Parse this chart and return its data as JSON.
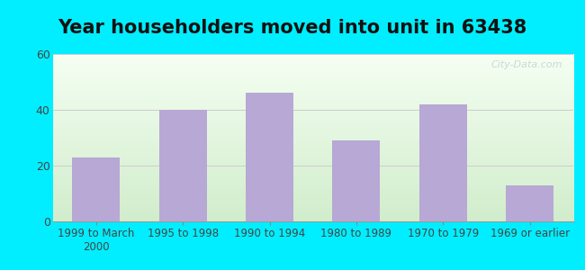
{
  "title": "Year householders moved into unit in 63438",
  "categories": [
    "1999 to March\n2000",
    "1995 to 1998",
    "1990 to 1994",
    "1980 to 1989",
    "1970 to 1979",
    "1969 or earlier"
  ],
  "values": [
    23,
    40,
    46,
    29,
    42,
    13
  ],
  "bar_color": "#b8a8d5",
  "ylim": [
    0,
    60
  ],
  "yticks": [
    0,
    20,
    40,
    60
  ],
  "outer_bg": "#00eeff",
  "inner_bg_top": "#f0f8f0",
  "inner_bg_bottom": "#d0eccc",
  "title_fontsize": 15,
  "tick_fontsize": 8.5,
  "watermark_text": "City-Data.com",
  "watermark_color": "#aab8c8",
  "watermark_alpha": 0.55,
  "fig_width": 6.5,
  "fig_height": 3.0,
  "fig_dpi": 100
}
